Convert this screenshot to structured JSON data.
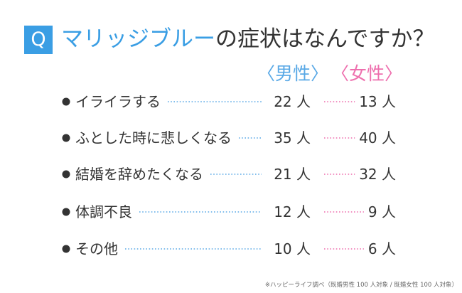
{
  "header": {
    "badge": "Q",
    "title_accent": "マリッジブルー",
    "title_rest": "の症状はなんですか？"
  },
  "legend": {
    "male": "〈男性〉",
    "female": "〈女性〉"
  },
  "colors": {
    "accent": "#3a9ee4",
    "male": "#5aa9e6",
    "female": "#ee6fae",
    "text": "#333333"
  },
  "chart_data": {
    "type": "table",
    "title": "マリッジブルーの症状はなんですか？",
    "categories": [
      "イライラする",
      "ふとした時に悲しくなる",
      "結婚を辞めたくなる",
      "体調不良",
      "その他"
    ],
    "series": [
      {
        "name": "男性",
        "values": [
          22,
          35,
          21,
          12,
          10
        ]
      },
      {
        "name": "女性",
        "values": [
          13,
          40,
          32,
          9,
          6
        ]
      }
    ],
    "unit": "人"
  },
  "footnote": "※ハッピーライフ調べ（既婚男性 100 人対象 / 既婚女性 100 人対象）"
}
